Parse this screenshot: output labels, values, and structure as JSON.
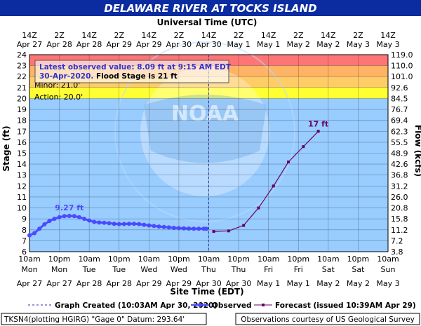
{
  "title": "DELAWARE RIVER AT TOCKS ISLAND",
  "top_axis_title": "Universal Time (UTC)",
  "bottom_axis_title": "Site Time (EDT)",
  "y_left_label": "Stage (ft)",
  "y_right_label": "Flow (kcfs)",
  "colors": {
    "title_bg": "#0b2ca0",
    "plot_bg": "#99ccff",
    "major_band": "#ff7575",
    "moderate_band": "#ffb366",
    "minor_band": "#ffcc66",
    "action_band": "#ffff33",
    "observed": "#4a4aff",
    "forecast": "#660066"
  },
  "top_ticks": [
    {
      "time": "14Z",
      "date": "Apr 27"
    },
    {
      "time": "2Z",
      "date": "Apr 28"
    },
    {
      "time": "14Z",
      "date": "Apr 28"
    },
    {
      "time": "2Z",
      "date": "Apr 29"
    },
    {
      "time": "14Z",
      "date": "Apr 29"
    },
    {
      "time": "2Z",
      "date": "Apr 30"
    },
    {
      "time": "14Z",
      "date": "Apr 30"
    },
    {
      "time": "2Z",
      "date": "May 1"
    },
    {
      "time": "14Z",
      "date": "May 1"
    },
    {
      "time": "2Z",
      "date": "May 2"
    },
    {
      "time": "14Z",
      "date": "May 2"
    },
    {
      "time": "2Z",
      "date": "May 3"
    },
    {
      "time": "14Z",
      "date": "May 3"
    }
  ],
  "bottom_ticks": [
    {
      "time": "10am",
      "day": "Mon",
      "date": "Apr 27"
    },
    {
      "time": "10pm",
      "day": "Mon",
      "date": "Apr 27"
    },
    {
      "time": "10am",
      "day": "Tue",
      "date": "Apr 28"
    },
    {
      "time": "10pm",
      "day": "Tue",
      "date": "Apr 28"
    },
    {
      "time": "10am",
      "day": "Wed",
      "date": "Apr 29"
    },
    {
      "time": "10pm",
      "day": "Wed",
      "date": "Apr 29"
    },
    {
      "time": "10am",
      "day": "Thu",
      "date": "Apr 30"
    },
    {
      "time": "10pm",
      "day": "Thu",
      "date": "Apr 30"
    },
    {
      "time": "10am",
      "day": "Fri",
      "date": "May 1"
    },
    {
      "time": "10pm",
      "day": "Fri",
      "date": "May 1"
    },
    {
      "time": "10am",
      "day": "Sat",
      "date": "May 2"
    },
    {
      "time": "10pm",
      "day": "Sat",
      "date": "May 2"
    },
    {
      "time": "10am",
      "day": "Sun",
      "date": "May 3"
    }
  ],
  "info_box": {
    "line1": "Latest observed value: 8.09 ft at 9:15 AM EDT",
    "line2_date": "30-Apr-2020.",
    "line2_rest": " Flood Stage is 21 ft"
  },
  "band_labels": {
    "minor": "Minor: 21.0'",
    "action": "Action: 20.0'"
  },
  "annotations": {
    "peak_observed": "9.27 ft",
    "peak_forecast": "17 ft"
  },
  "legend": {
    "created": "Graph Created (10:03AM Apr 30, 2020)",
    "observed": "Observed",
    "forecast": "Forecast (issued 10:39AM Apr 29)"
  },
  "footer": {
    "left": "TKSN4(plotting HGIRG) \"Gage 0\" Datum: 293.64'",
    "right": "Observations courtesy of US Geological Survey"
  },
  "chart_data": {
    "type": "line",
    "title": "DELAWARE RIVER AT TOCKS ISLAND",
    "xlabel": "Site Time (EDT)",
    "x2label": "Universal Time (UTC)",
    "ylabel": "Stage (ft)",
    "y2label": "Flow (kcfs)",
    "x_unit": "hours after 10am EDT Apr 27",
    "xlim": [
      0,
      144
    ],
    "ylim": [
      6,
      24
    ],
    "y_ticks": [
      6,
      7,
      8,
      9,
      10,
      11,
      12,
      13,
      14,
      15,
      16,
      17,
      18,
      19,
      20,
      21,
      22,
      23,
      24
    ],
    "y2_ticks": [
      "3.8",
      "7.2",
      "11.2",
      "15.8",
      "20.8",
      "26.0",
      "31.2",
      "36.8",
      "42.6",
      "48.9",
      "55.5",
      "62.3",
      "69.4",
      "76.7",
      "84.5",
      "92.6",
      "101.0",
      "110.0",
      "119.0"
    ],
    "thresholds": {
      "action": 20,
      "minor": 21,
      "moderate": 22,
      "major": 23
    },
    "graph_created_x": 72,
    "grid": true,
    "legend_position": "bottom",
    "series": [
      {
        "name": "Observed",
        "x": [
          0,
          2,
          4,
          6,
          8,
          10,
          12,
          14,
          16,
          18,
          20,
          22,
          24,
          26,
          28,
          30,
          32,
          34,
          36,
          38,
          40,
          42,
          44,
          46,
          48,
          50,
          52,
          54,
          56,
          58,
          60,
          62,
          64,
          66,
          68,
          70,
          71
        ],
        "y": [
          7.5,
          7.7,
          8.1,
          8.5,
          8.8,
          9.0,
          9.15,
          9.25,
          9.27,
          9.25,
          9.15,
          9.0,
          8.85,
          8.72,
          8.67,
          8.64,
          8.6,
          8.55,
          8.52,
          8.53,
          8.55,
          8.55,
          8.52,
          8.46,
          8.4,
          8.35,
          8.3,
          8.26,
          8.22,
          8.18,
          8.15,
          8.13,
          8.11,
          8.1,
          8.1,
          8.1,
          8.09
        ]
      },
      {
        "name": "Forecast (issued 10:39AM Apr 29)",
        "x": [
          74,
          80,
          86,
          92,
          98,
          104,
          110,
          116
        ],
        "y": [
          7.85,
          7.9,
          8.4,
          10.0,
          12.0,
          14.2,
          15.6,
          17.0
        ]
      }
    ]
  }
}
